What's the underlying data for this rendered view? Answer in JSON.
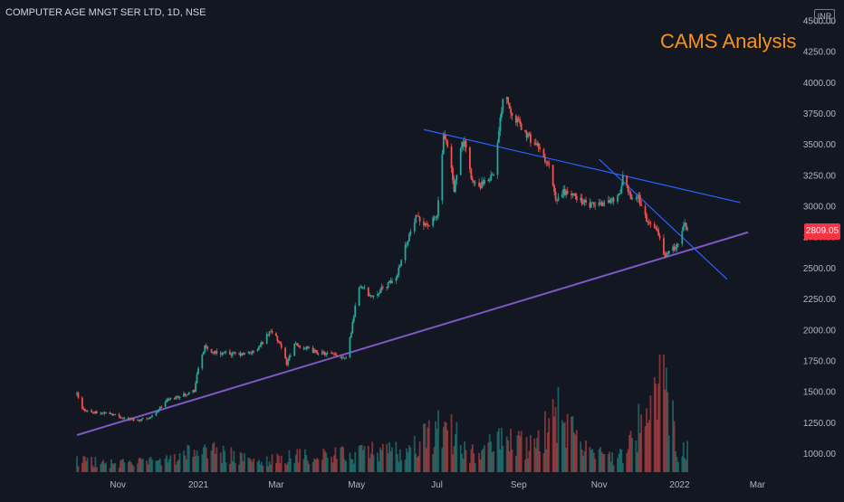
{
  "header": {
    "symbol_title": "COMPUTER AGE MNGT SER LTD, 1D, NSE",
    "overlay_title": "CAMS Analysis",
    "currency": "INR",
    "last_price": "2809.05"
  },
  "colors": {
    "background": "#131722",
    "up": "#26a69a",
    "down": "#ef5350",
    "support_line": "#7e57c2",
    "resistance_line": "#2962ff",
    "axis_text": "#b2b5be",
    "title": "#f7931a"
  },
  "chart_data": {
    "type": "candlestick",
    "title": "CAMS Analysis",
    "y_ticks": [
      1000,
      1250,
      1500,
      1750,
      2000,
      2250,
      2500,
      2750,
      3000,
      3250,
      3500,
      3750,
      4000,
      4250,
      4500
    ],
    "y_tick_labels": [
      "1000.00",
      "1250.00",
      "1500.00",
      "1750.00",
      "2000.00",
      "2250.00",
      "2500.00",
      "2750.00",
      "3000.00",
      "3250.00",
      "3500.00",
      "3750.00",
      "4000.00",
      "4250.00",
      "4500.00"
    ],
    "ylim": [
      850,
      4580
    ],
    "x_ticks": [
      "Nov",
      "2021",
      "Mar",
      "May",
      "Jul",
      "Sep",
      "Nov",
      "2022",
      "Mar"
    ],
    "x_tick_dates": [
      "2020-11-01",
      "2021-01-01",
      "2021-03-01",
      "2021-05-01",
      "2021-07-01",
      "2021-09-01",
      "2021-11-01",
      "2022-01-01",
      "2022-03-01"
    ],
    "xlim": [
      "2020-10-01",
      "2022-03-31"
    ],
    "price_path": [
      [
        "2020-10-01",
        1480
      ],
      [
        "2020-10-05",
        1360
      ],
      [
        "2020-10-14",
        1330
      ],
      [
        "2020-10-25",
        1330
      ],
      [
        "2020-11-05",
        1290
      ],
      [
        "2020-11-16",
        1270
      ],
      [
        "2020-11-27",
        1300
      ],
      [
        "2020-12-08",
        1430
      ],
      [
        "2020-12-19",
        1470
      ],
      [
        "2020-12-29",
        1510
      ],
      [
        "2021-01-02",
        1750
      ],
      [
        "2021-01-06",
        1860
      ],
      [
        "2021-01-12",
        1820
      ],
      [
        "2021-01-23",
        1810
      ],
      [
        "2021-02-03",
        1800
      ],
      [
        "2021-02-14",
        1830
      ],
      [
        "2021-02-25",
        2000
      ],
      [
        "2021-03-03",
        1900
      ],
      [
        "2021-03-09",
        1730
      ],
      [
        "2021-03-15",
        1880
      ],
      [
        "2021-03-21",
        1860
      ],
      [
        "2021-04-01",
        1820
      ],
      [
        "2021-04-12",
        1800
      ],
      [
        "2021-04-23",
        1780
      ],
      [
        "2021-04-27",
        1990
      ],
      [
        "2021-05-01",
        2260
      ],
      [
        "2021-05-04",
        2360
      ],
      [
        "2021-05-12",
        2270
      ],
      [
        "2021-05-20",
        2330
      ],
      [
        "2021-05-31",
        2420
      ],
      [
        "2021-06-04",
        2580
      ],
      [
        "2021-06-09",
        2740
      ],
      [
        "2021-06-15",
        2900
      ],
      [
        "2021-06-25",
        2850
      ],
      [
        "2021-07-01",
        2920
      ],
      [
        "2021-07-06",
        3550
      ],
      [
        "2021-07-10",
        3450
      ],
      [
        "2021-07-14",
        3120
      ],
      [
        "2021-07-19",
        3500
      ],
      [
        "2021-07-22",
        3500
      ],
      [
        "2021-07-28",
        3200
      ],
      [
        "2021-08-01",
        3150
      ],
      [
        "2021-08-08",
        3200
      ],
      [
        "2021-08-14",
        3300
      ],
      [
        "2021-08-21",
        3990
      ],
      [
        "2021-08-25",
        3800
      ],
      [
        "2021-09-05",
        3600
      ],
      [
        "2021-09-14",
        3500
      ],
      [
        "2021-09-25",
        3300
      ],
      [
        "2021-09-29",
        3030
      ],
      [
        "2021-10-05",
        3120
      ],
      [
        "2021-10-14",
        3080
      ],
      [
        "2021-10-25",
        3000
      ],
      [
        "2021-11-05",
        3030
      ],
      [
        "2021-11-16",
        3080
      ],
      [
        "2021-11-19",
        3220
      ],
      [
        "2021-11-25",
        3080
      ],
      [
        "2021-12-01",
        3070
      ],
      [
        "2021-12-08",
        2860
      ],
      [
        "2021-12-14",
        2840
      ],
      [
        "2021-12-20",
        2610
      ],
      [
        "2021-12-25",
        2630
      ],
      [
        "2021-12-31",
        2700
      ],
      [
        "2022-01-04",
        2860
      ],
      [
        "2022-01-08",
        2810
      ]
    ],
    "volume_path": [
      [
        "2020-10-01",
        0.13
      ],
      [
        "2020-10-25",
        0.09
      ],
      [
        "2020-12-12",
        0.12
      ],
      [
        "2021-01-04",
        0.25
      ],
      [
        "2021-02-14",
        0.1
      ],
      [
        "2021-03-12",
        0.16
      ],
      [
        "2021-04-25",
        0.18
      ],
      [
        "2021-05-09",
        0.22
      ],
      [
        "2021-06-06",
        0.21
      ],
      [
        "2021-07-06",
        0.48
      ],
      [
        "2021-07-28",
        0.2
      ],
      [
        "2021-08-23",
        0.34
      ],
      [
        "2021-09-14",
        0.25
      ],
      [
        "2021-09-29",
        0.62
      ],
      [
        "2021-10-25",
        0.18
      ],
      [
        "2021-11-19",
        0.16
      ],
      [
        "2021-12-20",
        1.0
      ],
      [
        "2021-12-31",
        0.23
      ],
      [
        "2022-01-08",
        0.22
      ]
    ],
    "trendlines": [
      {
        "name": "",
        "from": [
          "2020-10-01",
          1150
        ],
        "to": [
          "2022-02-22",
          2790
        ],
        "color": "#7e57c2"
      },
      {
        "name": "",
        "from": [
          "2021-06-21",
          3620
        ],
        "to": [
          "2022-02-16",
          3030
        ],
        "color": "#2962ff"
      },
      {
        "name": "",
        "from": [
          "2021-11-01",
          3380
        ],
        "to": [
          "2022-02-06",
          2410
        ],
        "color": "#2962ff"
      }
    ],
    "last_price": 2809.05,
    "currency": "INR",
    "grid": false,
    "legend": "none"
  }
}
